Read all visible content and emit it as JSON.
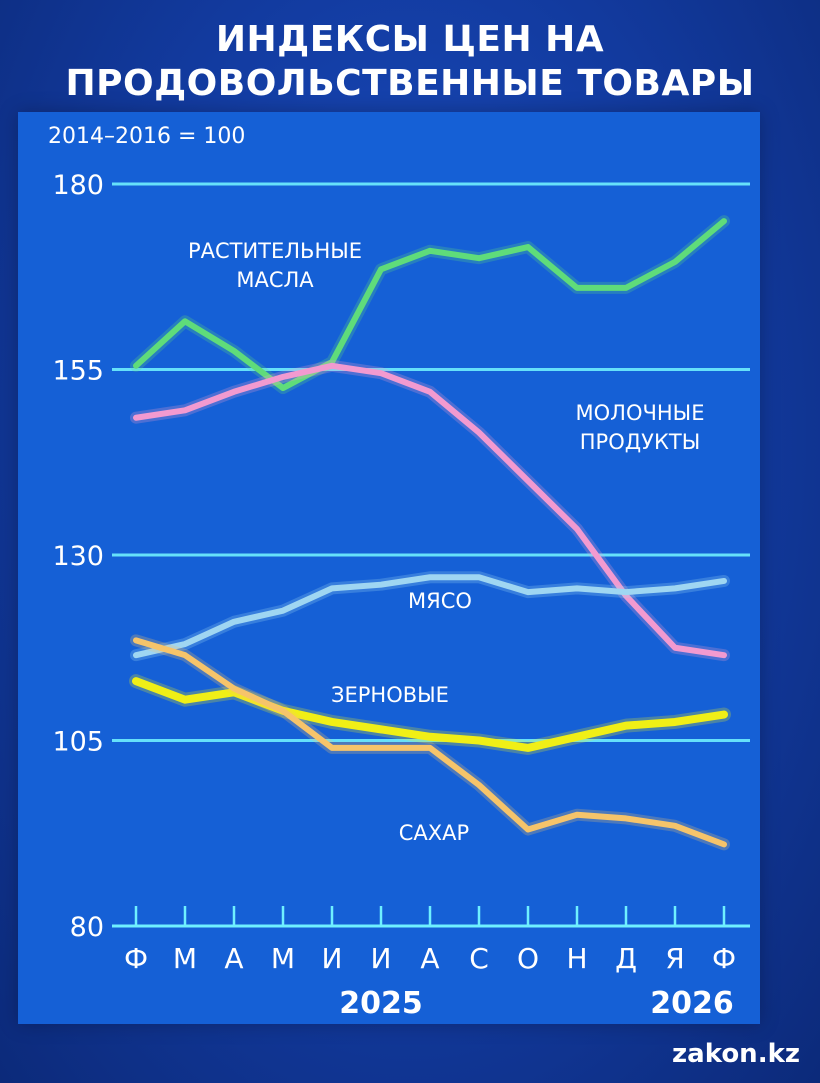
{
  "title_line1": "ИНДЕКСЫ ЦЕН НА",
  "title_line2": "ПРОДОВОЛЬСТВЕННЫЕ ТОВАРЫ",
  "watermark": "zakon.kz",
  "colors": {
    "background": "#1560d6",
    "gridline": "#6ff0ff",
    "vegetable_oils": "#5fdc7a",
    "dairy": "#f29ad0",
    "meat": "#9fd6f2",
    "cereals": "#f0ef16",
    "sugar": "#f6c46a"
  },
  "chart_data": {
    "type": "line",
    "subtitle": "2014–2016 = 100",
    "categories": [
      "Ф",
      "М",
      "А",
      "М",
      "И",
      "И",
      "А",
      "С",
      "О",
      "Н",
      "Д",
      "Я",
      "Ф"
    ],
    "year_labels": [
      {
        "label": "2025",
        "category_index": 5
      },
      {
        "label": "2026",
        "category_index": 12
      }
    ],
    "ylim": [
      80,
      180
    ],
    "yticks": [
      80,
      105,
      130,
      155,
      180
    ],
    "grid": true,
    "series": [
      {
        "name": "РАСТИТЕЛЬНЫЕ МАСЛА",
        "label_lines": [
          "РАСТИТЕЛЬНЫЕ",
          "МАСЛА"
        ],
        "color_key": "vegetable_oils",
        "values": [
          155.5,
          161.5,
          157.5,
          152.5,
          156,
          168.5,
          171,
          170,
          171.5,
          166,
          166,
          169.5,
          175
        ]
      },
      {
        "name": "МОЛОЧНЫЕ ПРОДУКТЫ",
        "label_lines": [
          "МОЛОЧНЫЕ",
          "ПРОДУКТЫ"
        ],
        "color_key": "dairy",
        "values": [
          148.5,
          149.5,
          152,
          154,
          155.5,
          154.5,
          152,
          146.5,
          140,
          133.5,
          124.5,
          117.5,
          116.5
        ]
      },
      {
        "name": "МЯСО",
        "label_lines": [
          "МЯСО"
        ],
        "color_key": "meat",
        "values": [
          116.5,
          118,
          121,
          122.5,
          125.5,
          126,
          127,
          127,
          125,
          125.5,
          125,
          125.5,
          126.5
        ]
      },
      {
        "name": "ЗЕРНОВЫЕ",
        "label_lines": [
          "ЗЕРНОВЫЕ"
        ],
        "color_key": "cereals",
        "values": [
          113,
          110.5,
          111.5,
          109,
          107.5,
          106.5,
          105.5,
          105,
          104,
          105.5,
          107,
          107.5,
          108.5
        ]
      },
      {
        "name": "САХАР",
        "label_lines": [
          "САХАР"
        ],
        "color_key": "sugar",
        "values": [
          118.5,
          116.5,
          112,
          109,
          104,
          104,
          104,
          99,
          93,
          95,
          94.5,
          93.5,
          91
        ]
      }
    ]
  }
}
